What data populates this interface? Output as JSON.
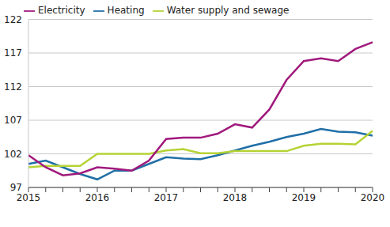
{
  "chart_data": {
    "type": "line",
    "categories": [
      "2015",
      null,
      null,
      null,
      "2016",
      null,
      null,
      null,
      "2017",
      null,
      null,
      null,
      "2018",
      null,
      null,
      null,
      "2019",
      null,
      null,
      null,
      "2020"
    ],
    "series": [
      {
        "name": "Heating",
        "color": "#1f6fa6",
        "values": [
          100.5,
          101,
          100,
          99,
          98.2,
          99.5,
          99.5,
          100.5,
          101.5,
          101.3,
          101.2,
          101.8,
          102.5,
          103.2,
          103.8,
          104.5,
          105,
          105.7,
          105.3,
          105.2,
          104.7
        ]
      },
      {
        "name": "Water supply and sewage",
        "color": "#b5d334",
        "values": [
          100,
          100.2,
          100.2,
          100.2,
          102,
          102,
          102,
          102,
          102.5,
          102.7,
          102.1,
          102.1,
          102.4,
          102.4,
          102.4,
          102.4,
          103.2,
          103.5,
          103.5,
          103.4,
          105.4
        ]
      },
      {
        "name": "Electricity",
        "color": "#a0197c",
        "values": [
          101.8,
          100,
          98.8,
          99.1,
          100,
          99.8,
          99.5,
          101,
          104.2,
          104.4,
          104.4,
          105,
          106.4,
          105.9,
          108.6,
          113,
          115.8,
          116.2,
          115.8,
          117.6,
          118.6
        ]
      }
    ],
    "ylim": [
      97,
      122
    ],
    "yticks": [
      97,
      102,
      107,
      112,
      117,
      122
    ],
    "grid": true,
    "legend": "top-left"
  }
}
